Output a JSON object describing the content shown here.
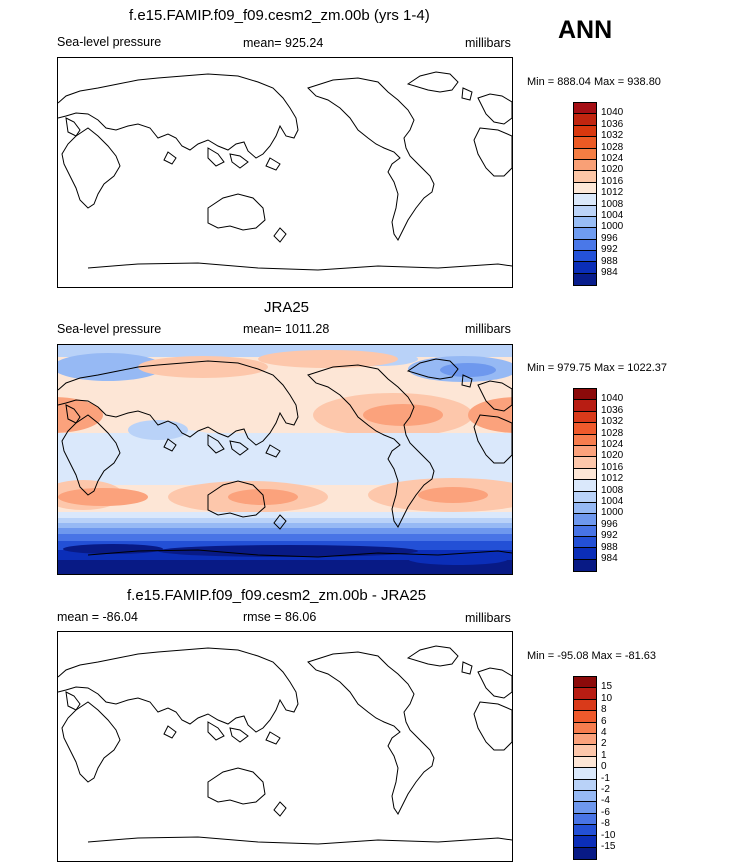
{
  "season": "ANN",
  "panels": [
    {
      "title": "f.e15.FAMIP.f09_f09.cesm2_zm.00b (yrs 1-4)",
      "left_label": "Sea-level pressure",
      "center_label": "mean= 925.24",
      "right_label": "millibars",
      "minmax": "Min = 888.04 Max = 938.80",
      "colorbar": {
        "labels": [
          "1040",
          "1036",
          "1032",
          "1028",
          "1024",
          "1020",
          "1016",
          "1012",
          "1008",
          "1004",
          "1000",
          "996",
          "992",
          "988",
          "984"
        ],
        "colors": [
          "#a50f15",
          "#c1250f",
          "#d9380e",
          "#ec5a24",
          "#f47d43",
          "#f9a076",
          "#fcc6a6",
          "#fde8d8",
          "#dbe9fb",
          "#bcd4f8",
          "#98bdf5",
          "#6f9cf0",
          "#4a78e8",
          "#2452d8",
          "#0b2eb8",
          "#081d8c"
        ]
      }
    },
    {
      "title": "JRA25",
      "left_label": "Sea-level pressure",
      "center_label": "mean= 1011.28",
      "right_label": "millibars",
      "minmax": "Min = 979.75 Max = 1022.37",
      "colorbar": {
        "labels": [
          "1040",
          "1036",
          "1032",
          "1028",
          "1024",
          "1020",
          "1016",
          "1012",
          "1008",
          "1004",
          "1000",
          "996",
          "992",
          "988",
          "984"
        ],
        "colors": [
          "#8b0a0a",
          "#b81d13",
          "#d93a1a",
          "#ef5a2c",
          "#f77d4e",
          "#fba27c",
          "#fdc7ab",
          "#fde6d6",
          "#dae8fb",
          "#b9d2f8",
          "#96b9f4",
          "#6e98ee",
          "#4874e6",
          "#2350d6",
          "#0b2eb8",
          "#081a85"
        ]
      }
    },
    {
      "title": "f.e15.FAMIP.f09_f09.cesm2_zm.00b - JRA25",
      "left_label": "mean = -86.04",
      "center_label": "rmse =  86.06",
      "right_label": "millibars",
      "minmax": "Min = -95.08 Max = -81.63",
      "colorbar": {
        "labels": [
          "15",
          "10",
          "8",
          "6",
          "4",
          "2",
          "1",
          "0",
          "-1",
          "-2",
          "-4",
          "-6",
          "-8",
          "-10",
          "-15"
        ],
        "colors": [
          "#8b0a0a",
          "#b81d13",
          "#d93a1a",
          "#ef5a2c",
          "#f77d4e",
          "#fba27c",
          "#fdc7ab",
          "#fde6d6",
          "#dae8fb",
          "#b9d2f8",
          "#96b9f4",
          "#6e98ee",
          "#4874e6",
          "#2350d6",
          "#0b2eb8",
          "#081a85"
        ]
      }
    }
  ]
}
